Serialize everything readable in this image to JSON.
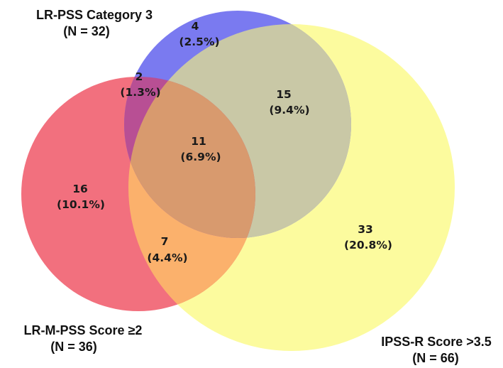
{
  "sets": [
    {
      "id": "lr_pss",
      "title": "LR-PSS Category 3",
      "count": "(N = 32)",
      "color": "#7a7af0"
    },
    {
      "id": "lr_m_pss",
      "title": "LR-M-PSS Score ≥2",
      "count": "(N = 36)",
      "color": "#f2707e"
    },
    {
      "id": "ipss_r",
      "title": "IPSS-R Score >3.5",
      "count": "(N = 66)",
      "color": "#fcfb9e"
    }
  ],
  "regions": [
    {
      "id": "lr_pss_only",
      "count": "4",
      "percent": "(2.5%)"
    },
    {
      "id": "lr_pss_lr_m_pss",
      "count": "2",
      "percent": "(1.3%)"
    },
    {
      "id": "lr_pss_ipss_r",
      "count": "15",
      "percent": "(9.4%)"
    },
    {
      "id": "all_three",
      "count": "11",
      "percent": "(6.9%)"
    },
    {
      "id": "lr_m_pss_only",
      "count": "16",
      "percent": "(10.1%)"
    },
    {
      "id": "lr_m_pss_ipss_r",
      "count": "7",
      "percent": "(4.4%)"
    },
    {
      "id": "ipss_r_only",
      "count": "33",
      "percent": "(20.8%)"
    }
  ]
}
